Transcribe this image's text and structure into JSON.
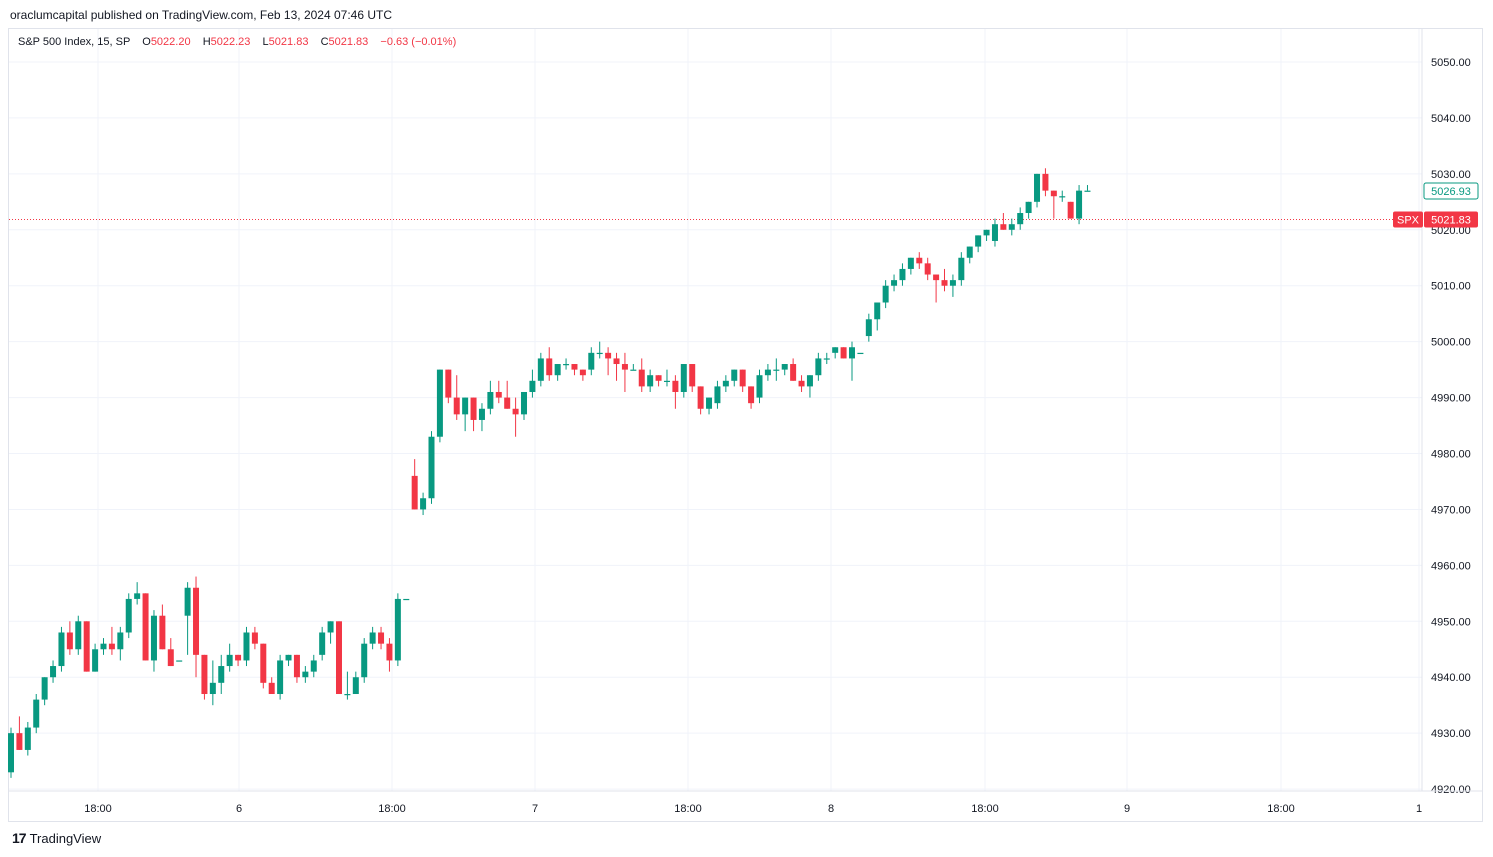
{
  "header": {
    "attribution": "oraclumcapital published on TradingView.com, Feb 13, 2024 07:46 UTC"
  },
  "legend": {
    "symbol": "S&P 500 Index, 15, SP",
    "open_label": "O",
    "open": "5022.20",
    "high_label": "H",
    "high": "5022.23",
    "low_label": "L",
    "low": "5021.83",
    "close_label": "C",
    "close": "5021.83",
    "change": "−0.63 (−0.01%)"
  },
  "price_tags": {
    "last_price": "5026.93",
    "ticker": "SPX",
    "current": "5021.83"
  },
  "footer": {
    "brand": "TradingView",
    "logo": "17"
  },
  "colors": {
    "up": "#089981",
    "down": "#f23645",
    "grid": "#f0f3fa"
  },
  "chart_data": {
    "type": "candlestick",
    "timeframe": "15",
    "ylim": [
      4920,
      5055
    ],
    "y_ticks": [
      "5050.00",
      "5040.00",
      "5030.00",
      "5020.00",
      "5010.00",
      "5000.00",
      "4990.00",
      "4980.00",
      "4970.00",
      "4960.00",
      "4950.00",
      "4940.00",
      "4930.00",
      "4920.00"
    ],
    "x_ticks": [
      "18:00",
      "6",
      "18:00",
      "7",
      "18:00",
      "8",
      "18:00",
      "9",
      "18:00",
      "1"
    ],
    "current_price": 5021.83,
    "candles": [
      {
        "o": 4923,
        "h": 4931,
        "l": 4922,
        "c": 4930
      },
      {
        "o": 4930,
        "h": 4933,
        "l": 4927,
        "c": 4927
      },
      {
        "o": 4927,
        "h": 4932,
        "l": 4926,
        "c": 4931
      },
      {
        "o": 4931,
        "h": 4937,
        "l": 4930,
        "c": 4936
      },
      {
        "o": 4936,
        "h": 4940,
        "l": 4935,
        "c": 4940
      },
      {
        "o": 4940,
        "h": 4943,
        "l": 4939,
        "c": 4942
      },
      {
        "o": 4942,
        "h": 4949,
        "l": 4941,
        "c": 4948
      },
      {
        "o": 4948,
        "h": 4950,
        "l": 4944,
        "c": 4945
      },
      {
        "o": 4945,
        "h": 4951,
        "l": 4944,
        "c": 4950
      },
      {
        "o": 4950,
        "h": 4950,
        "l": 4941,
        "c": 4941
      },
      {
        "o": 4941,
        "h": 4946,
        "l": 4941,
        "c": 4945
      },
      {
        "o": 4945,
        "h": 4947,
        "l": 4944,
        "c": 4946
      },
      {
        "o": 4946,
        "h": 4949,
        "l": 4944,
        "c": 4945
      },
      {
        "o": 4945,
        "h": 4949,
        "l": 4943,
        "c": 4948
      },
      {
        "o": 4948,
        "h": 4955,
        "l": 4947,
        "c": 4954
      },
      {
        "o": 4954,
        "h": 4957,
        "l": 4953,
        "c": 4955
      },
      {
        "o": 4955,
        "h": 4955,
        "l": 4943,
        "c": 4943
      },
      {
        "o": 4943,
        "h": 4952,
        "l": 4941,
        "c": 4951
      },
      {
        "o": 4951,
        "h": 4953,
        "l": 4945,
        "c": 4945
      },
      {
        "o": 4945,
        "h": 4947,
        "l": 4942,
        "c": 4942
      },
      {
        "o": 4943,
        "h": 4943,
        "l": 4943,
        "c": 4943
      },
      {
        "o": 4951,
        "h": 4957,
        "l": 4944,
        "c": 4956
      },
      {
        "o": 4956,
        "h": 4958,
        "l": 4940,
        "c": 4944
      },
      {
        "o": 4944,
        "h": 4944,
        "l": 4936,
        "c": 4937
      },
      {
        "o": 4937,
        "h": 4943,
        "l": 4935,
        "c": 4939
      },
      {
        "o": 4939,
        "h": 4944,
        "l": 4937,
        "c": 4942
      },
      {
        "o": 4942,
        "h": 4946,
        "l": 4941,
        "c": 4944
      },
      {
        "o": 4944,
        "h": 4944,
        "l": 4942,
        "c": 4943
      },
      {
        "o": 4943,
        "h": 4949,
        "l": 4942,
        "c": 4948
      },
      {
        "o": 4948,
        "h": 4949,
        "l": 4945,
        "c": 4946
      },
      {
        "o": 4946,
        "h": 4946,
        "l": 4938,
        "c": 4939
      },
      {
        "o": 4939,
        "h": 4940,
        "l": 4937,
        "c": 4937
      },
      {
        "o": 4937,
        "h": 4944,
        "l": 4936,
        "c": 4943
      },
      {
        "o": 4943,
        "h": 4944,
        "l": 4942,
        "c": 4944
      },
      {
        "o": 4944,
        "h": 4944,
        "l": 4939,
        "c": 4940
      },
      {
        "o": 4940,
        "h": 4942,
        "l": 4939,
        "c": 4941
      },
      {
        "o": 4941,
        "h": 4944,
        "l": 4940,
        "c": 4943
      },
      {
        "o": 4944,
        "h": 4949,
        "l": 4943,
        "c": 4948
      },
      {
        "o": 4948,
        "h": 4950,
        "l": 4946,
        "c": 4950
      },
      {
        "o": 4950,
        "h": 4950,
        "l": 4937,
        "c": 4937
      },
      {
        "o": 4937,
        "h": 4941,
        "l": 4936,
        "c": 4937
      },
      {
        "o": 4937,
        "h": 4941,
        "l": 4937,
        "c": 4940
      },
      {
        "o": 4940,
        "h": 4947,
        "l": 4939,
        "c": 4946
      },
      {
        "o": 4946,
        "h": 4949,
        "l": 4945,
        "c": 4948
      },
      {
        "o": 4948,
        "h": 4949,
        "l": 4945,
        "c": 4946
      },
      {
        "o": 4946,
        "h": 4947,
        "l": 4941,
        "c": 4943
      },
      {
        "o": 4943,
        "h": 4955,
        "l": 4942,
        "c": 4954
      },
      {
        "o": 4954,
        "h": 4954,
        "l": 4954,
        "c": 4954
      },
      {
        "o": 4976,
        "h": 4979,
        "l": 4970,
        "c": 4970
      },
      {
        "o": 4970,
        "h": 4973,
        "l": 4969,
        "c": 4972
      },
      {
        "o": 4972,
        "h": 4984,
        "l": 4971,
        "c": 4983
      },
      {
        "o": 4983,
        "h": 4995,
        "l": 4982,
        "c": 4995
      },
      {
        "o": 4995,
        "h": 4995,
        "l": 4989,
        "c": 4990
      },
      {
        "o": 4990,
        "h": 4994,
        "l": 4986,
        "c": 4987
      },
      {
        "o": 4987,
        "h": 4990,
        "l": 4984,
        "c": 4990
      },
      {
        "o": 4990,
        "h": 4990,
        "l": 4984,
        "c": 4986
      },
      {
        "o": 4986,
        "h": 4989,
        "l": 4984,
        "c": 4988
      },
      {
        "o": 4988,
        "h": 4993,
        "l": 4987,
        "c": 4991
      },
      {
        "o": 4991,
        "h": 4993,
        "l": 4989,
        "c": 4990
      },
      {
        "o": 4990,
        "h": 4993,
        "l": 4988,
        "c": 4988
      },
      {
        "o": 4988,
        "h": 4990,
        "l": 4983,
        "c": 4987
      },
      {
        "o": 4987,
        "h": 4991,
        "l": 4986,
        "c": 4991
      },
      {
        "o": 4991,
        "h": 4995,
        "l": 4990,
        "c": 4993
      },
      {
        "o": 4993,
        "h": 4998,
        "l": 4992,
        "c": 4997
      },
      {
        "o": 4997,
        "h": 4999,
        "l": 4993,
        "c": 4994
      },
      {
        "o": 4994,
        "h": 4996,
        "l": 4993,
        "c": 4996
      },
      {
        "o": 4996,
        "h": 4997,
        "l": 4995,
        "c": 4996
      },
      {
        "o": 4996,
        "h": 4996,
        "l": 4994,
        "c": 4995
      },
      {
        "o": 4995,
        "h": 4995,
        "l": 4993,
        "c": 4994
      },
      {
        "o": 4995,
        "h": 4999,
        "l": 4994,
        "c": 4998
      },
      {
        "o": 4998,
        "h": 5000,
        "l": 4997,
        "c": 4998
      },
      {
        "o": 4998,
        "h": 4999,
        "l": 4994,
        "c": 4997
      },
      {
        "o": 4997,
        "h": 4998,
        "l": 4993,
        "c": 4996
      },
      {
        "o": 4996,
        "h": 4998,
        "l": 4991,
        "c": 4995
      },
      {
        "o": 4995,
        "h": 4996,
        "l": 4995,
        "c": 4995
      },
      {
        "o": 4995,
        "h": 4997,
        "l": 4991,
        "c": 4992
      },
      {
        "o": 4992,
        "h": 4995,
        "l": 4991,
        "c": 4994
      },
      {
        "o": 4994,
        "h": 4994,
        "l": 4992,
        "c": 4993
      },
      {
        "o": 4993,
        "h": 4995,
        "l": 4992,
        "c": 4993
      },
      {
        "o": 4993,
        "h": 4994,
        "l": 4988,
        "c": 4991
      },
      {
        "o": 4991,
        "h": 4996,
        "l": 4990,
        "c": 4996
      },
      {
        "o": 4996,
        "h": 4996,
        "l": 4991,
        "c": 4992
      },
      {
        "o": 4992,
        "h": 4992,
        "l": 4987,
        "c": 4988
      },
      {
        "o": 4988,
        "h": 4990,
        "l": 4987,
        "c": 4990
      },
      {
        "o": 4989,
        "h": 4993,
        "l": 4988,
        "c": 4992
      },
      {
        "o": 4992,
        "h": 4994,
        "l": 4991,
        "c": 4993
      },
      {
        "o": 4993,
        "h": 4995,
        "l": 4992,
        "c": 4995
      },
      {
        "o": 4995,
        "h": 4995,
        "l": 4991,
        "c": 4992
      },
      {
        "o": 4992,
        "h": 4992,
        "l": 4988,
        "c": 4989
      },
      {
        "o": 4990,
        "h": 4995,
        "l": 4989,
        "c": 4994
      },
      {
        "o": 4994,
        "h": 4996,
        "l": 4993,
        "c": 4995
      },
      {
        "o": 4995,
        "h": 4997,
        "l": 4993,
        "c": 4995
      },
      {
        "o": 4995,
        "h": 4996,
        "l": 4994,
        "c": 4996
      },
      {
        "o": 4996,
        "h": 4997,
        "l": 4993,
        "c": 4993
      },
      {
        "o": 4993,
        "h": 4994,
        "l": 4991,
        "c": 4992
      },
      {
        "o": 4992,
        "h": 4994,
        "l": 4990,
        "c": 4994
      },
      {
        "o": 4994,
        "h": 4998,
        "l": 4993,
        "c": 4997
      },
      {
        "o": 4997,
        "h": 4998,
        "l": 4996,
        "c": 4997
      },
      {
        "o": 4998,
        "h": 4999,
        "l": 4997,
        "c": 4999
      },
      {
        "o": 4999,
        "h": 4999,
        "l": 4997,
        "c": 4997
      },
      {
        "o": 4997,
        "h": 5000,
        "l": 4993,
        "c": 4999
      },
      {
        "o": 4998,
        "h": 4998,
        "l": 4998,
        "c": 4998
      },
      {
        "o": 5001,
        "h": 5005,
        "l": 5000,
        "c": 5004
      },
      {
        "o": 5004,
        "h": 5007,
        "l": 5002,
        "c": 5007
      },
      {
        "o": 5007,
        "h": 5011,
        "l": 5006,
        "c": 5010
      },
      {
        "o": 5010,
        "h": 5012,
        "l": 5009,
        "c": 5011
      },
      {
        "o": 5011,
        "h": 5014,
        "l": 5010,
        "c": 5013
      },
      {
        "o": 5013,
        "h": 5015,
        "l": 5012,
        "c": 5015
      },
      {
        "o": 5015,
        "h": 5016,
        "l": 5013,
        "c": 5014
      },
      {
        "o": 5014,
        "h": 5015,
        "l": 5011,
        "c": 5012
      },
      {
        "o": 5012,
        "h": 5012,
        "l": 5007,
        "c": 5011
      },
      {
        "o": 5011,
        "h": 5013,
        "l": 5009,
        "c": 5010
      },
      {
        "o": 5010,
        "h": 5012,
        "l": 5008,
        "c": 5011
      },
      {
        "o": 5011,
        "h": 5016,
        "l": 5010,
        "c": 5015
      },
      {
        "o": 5015,
        "h": 5017,
        "l": 5014,
        "c": 5017
      },
      {
        "o": 5017,
        "h": 5019,
        "l": 5016,
        "c": 5019
      },
      {
        "o": 5019,
        "h": 5020,
        "l": 5018,
        "c": 5020
      },
      {
        "o": 5018,
        "h": 5022,
        "l": 5017,
        "c": 5021
      },
      {
        "o": 5021,
        "h": 5023,
        "l": 5020,
        "c": 5020
      },
      {
        "o": 5020,
        "h": 5022,
        "l": 5019,
        "c": 5021
      },
      {
        "o": 5021,
        "h": 5024,
        "l": 5020,
        "c": 5023
      },
      {
        "o": 5023,
        "h": 5025,
        "l": 5022,
        "c": 5025
      },
      {
        "o": 5025,
        "h": 5030,
        "l": 5024,
        "c": 5030
      },
      {
        "o": 5030,
        "h": 5031,
        "l": 5026,
        "c": 5027
      },
      {
        "o": 5027,
        "h": 5027,
        "l": 5022,
        "c": 5026
      },
      {
        "o": 5026,
        "h": 5027,
        "l": 5025,
        "c": 5026
      },
      {
        "o": 5025,
        "h": 5025,
        "l": 5022,
        "c": 5022
      },
      {
        "o": 5022,
        "h": 5028,
        "l": 5021,
        "c": 5027
      },
      {
        "o": 5027,
        "h": 5028,
        "l": 5027,
        "c": 5027
      }
    ]
  }
}
